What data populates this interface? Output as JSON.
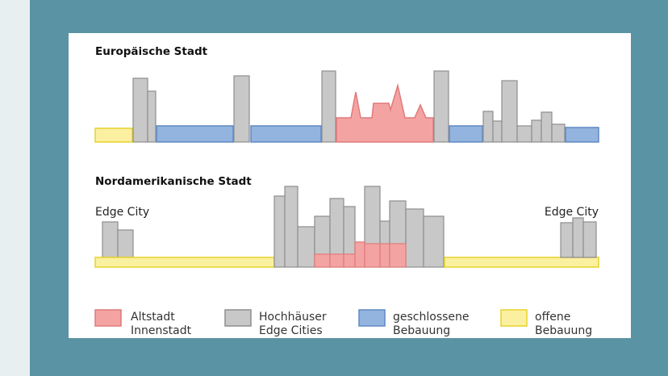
{
  "sections": {
    "european": {
      "title": "Europäische Stadt"
    },
    "north_american": {
      "title": "Nordamerikanische Stadt",
      "edge_city_left": "Edge City",
      "edge_city_right": "Edge City"
    }
  },
  "legend": [
    {
      "line1": "Altstadt",
      "line2": "Innenstadt",
      "color": "#f4a3a3"
    },
    {
      "line1": "Hochhäuser",
      "line2": "Edge Cities",
      "color": "#c8c8c8"
    },
    {
      "line1": "geschlossene",
      "line2": "Bebauung",
      "color": "#92b4de"
    },
    {
      "line1": "offene",
      "line2": "Bebauung",
      "color": "#fbf0a0"
    }
  ],
  "colors": {
    "altstadt_fill": "#f4a3a3",
    "altstadt_stroke": "#e07a7a",
    "hochhaus_fill": "#c8c8c8",
    "hochhaus_stroke": "#8e8e8e",
    "geschlossen_fill": "#92b4de",
    "geschlossen_stroke": "#5f8ac4",
    "offen_fill": "#fbf0a0",
    "offen_stroke": "#e6d32a"
  }
}
